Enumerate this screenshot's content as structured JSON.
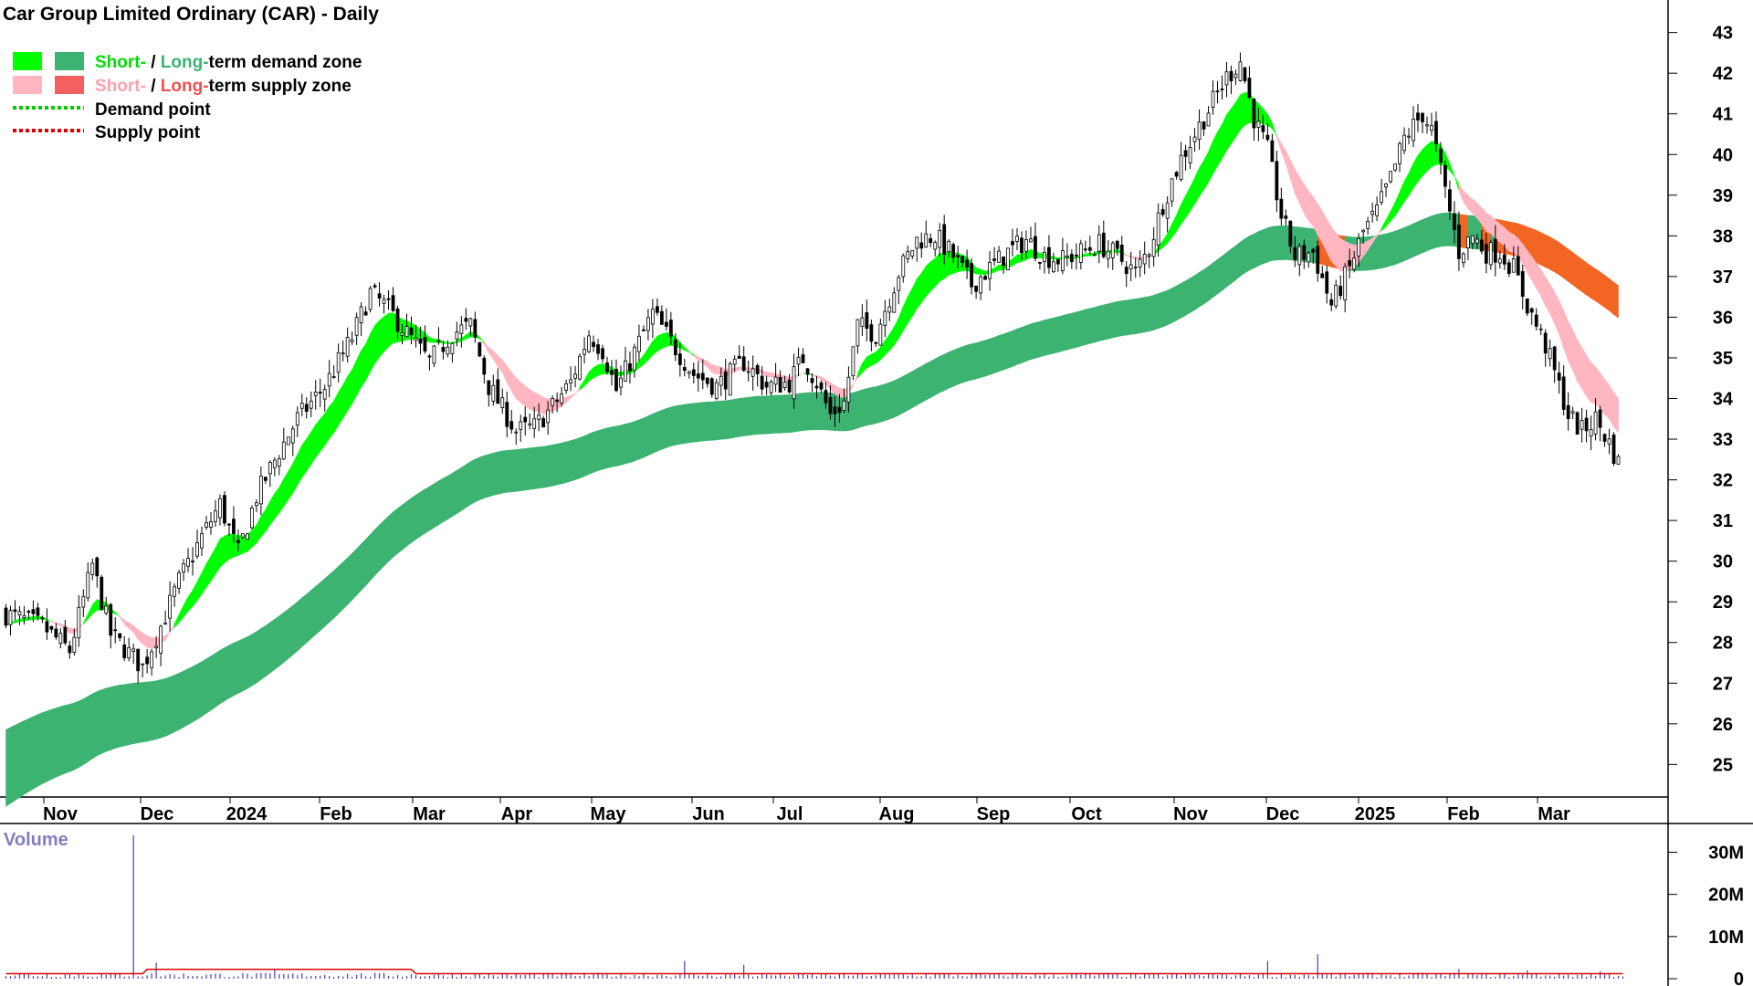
{
  "chart_data": {
    "type": "candlestick",
    "title": "Car Group Limited Ordinary (CAR) - Daily",
    "legend": {
      "demand_zone": {
        "short": "Short-",
        "sep": " / ",
        "long": "Long-",
        "rest": "term demand zone"
      },
      "supply_zone": {
        "short": "Short-",
        "sep": " / ",
        "long": "Long-",
        "rest": "term supply zone"
      },
      "demand_point": "Demand point",
      "supply_point": "Supply point"
    },
    "colors": {
      "short_demand": "#00ff00",
      "long_demand": "#3cb371",
      "short_supply": "#ffb6c1",
      "long_supply": "#f26522",
      "demand_point": "#00cc00",
      "supply_point": "#e00000",
      "candle": "#000000",
      "volume": "#4040c0",
      "volume_avg": "#e00000",
      "volume_label": "#8080c0"
    },
    "price_axis": {
      "ticks": [
        25,
        26,
        27,
        28,
        29,
        30,
        31,
        32,
        33,
        34,
        35,
        36,
        37,
        38,
        39,
        40,
        41,
        42,
        43
      ],
      "range": [
        24.2,
        43.8
      ]
    },
    "x_axis": {
      "labels": [
        "Nov",
        "Dec",
        "2024",
        "Feb",
        "Mar",
        "Apr",
        "May",
        "Jun",
        "Jul",
        "Aug",
        "Sep",
        "Oct",
        "Nov",
        "Dec",
        "2025",
        "Feb",
        "Mar"
      ]
    },
    "price_control_points": [
      [
        0,
        28.7
      ],
      [
        8,
        28.4
      ],
      [
        14,
        27.8
      ],
      [
        19,
        29.9
      ],
      [
        23,
        28.2
      ],
      [
        30,
        27.4
      ],
      [
        34,
        28.4
      ],
      [
        38,
        29.5
      ],
      [
        43,
        30.6
      ],
      [
        47,
        31.4
      ],
      [
        51,
        30.2
      ],
      [
        55,
        31.6
      ],
      [
        60,
        32.7
      ],
      [
        64,
        33.5
      ],
      [
        70,
        34.3
      ],
      [
        76,
        35.5
      ],
      [
        80,
        36.6
      ],
      [
        84,
        36.2
      ],
      [
        88,
        35.6
      ],
      [
        93,
        34.9
      ],
      [
        98,
        35.6
      ],
      [
        102,
        35.8
      ],
      [
        106,
        34.3
      ],
      [
        112,
        33.2
      ],
      [
        116,
        33.3
      ],
      [
        120,
        33.8
      ],
      [
        124,
        34.4
      ],
      [
        128,
        35.6
      ],
      [
        131,
        35.2
      ],
      [
        134,
        34.2
      ],
      [
        137,
        34.9
      ],
      [
        142,
        36.1
      ],
      [
        146,
        35.4
      ],
      [
        151,
        34.6
      ],
      [
        156,
        34.3
      ],
      [
        162,
        34.9
      ],
      [
        167,
        34.3
      ],
      [
        172,
        34.4
      ],
      [
        175,
        35.0
      ],
      [
        178,
        34.4
      ],
      [
        181,
        33.6
      ],
      [
        184,
        33.9
      ],
      [
        187,
        35.8
      ],
      [
        191,
        35.6
      ],
      [
        196,
        37.1
      ],
      [
        200,
        37.9
      ],
      [
        204,
        38.0
      ],
      [
        208,
        37.5
      ],
      [
        212,
        36.8
      ],
      [
        216,
        37.2
      ],
      [
        220,
        37.6
      ],
      [
        224,
        37.9
      ],
      [
        228,
        37.5
      ],
      [
        232,
        37.4
      ],
      [
        236,
        37.6
      ],
      [
        240,
        37.8
      ],
      [
        244,
        37.5
      ],
      [
        248,
        37.1
      ],
      [
        251,
        37.7
      ],
      [
        254,
        38.8
      ],
      [
        258,
        39.9
      ],
      [
        263,
        40.9
      ],
      [
        268,
        41.9
      ],
      [
        271,
        42.3
      ],
      [
        274,
        40.9
      ],
      [
        277,
        40.1
      ],
      [
        280,
        38.5
      ],
      [
        283,
        37.5
      ],
      [
        287,
        37.6
      ],
      [
        291,
        36.3
      ],
      [
        295,
        37.2
      ],
      [
        298,
        38.1
      ],
      [
        301,
        38.6
      ],
      [
        304,
        39.4
      ],
      [
        307,
        40.4
      ],
      [
        311,
        41.0
      ],
      [
        313,
        40.6
      ],
      [
        316,
        39.1
      ],
      [
        319,
        37.6
      ],
      [
        322,
        38.0
      ],
      [
        325,
        37.6
      ],
      [
        328,
        37.6
      ],
      [
        331,
        37.2
      ],
      [
        334,
        36.3
      ],
      [
        338,
        35.3
      ],
      [
        341,
        34.3
      ],
      [
        343,
        33.6
      ],
      [
        346,
        33.2
      ],
      [
        349,
        33.5
      ],
      [
        352,
        32.9
      ],
      [
        354,
        32.4
      ]
    ],
    "volume_axis": {
      "ticks": [
        "0",
        "10M",
        "20M",
        "30M"
      ],
      "max_millions": 34
    },
    "volume_label": "Volume",
    "volume_baseline_millions": 0.8,
    "volume_spikes_millions": [
      [
        28,
        34
      ],
      [
        33,
        3.8
      ],
      [
        59,
        2.2
      ],
      [
        149,
        4.2
      ],
      [
        162,
        3.3
      ],
      [
        277,
        4.2
      ],
      [
        288,
        5.8
      ],
      [
        319,
        2.3
      ],
      [
        334,
        2.0
      ],
      [
        350,
        1.8
      ]
    ],
    "ylim": [
      24.2,
      43.8
    ]
  }
}
